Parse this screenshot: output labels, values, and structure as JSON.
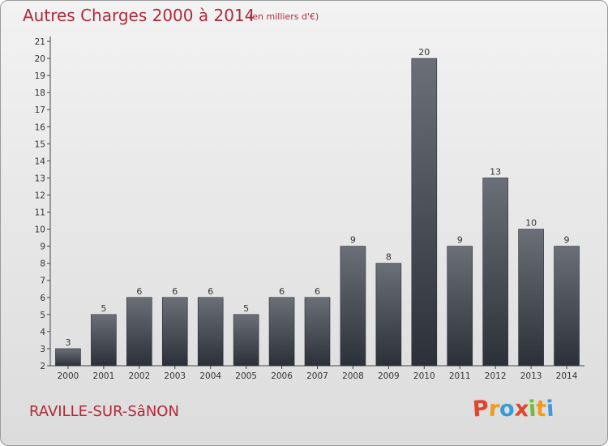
{
  "header": {
    "title": "Autres Charges 2000 à 2014",
    "subtitle": "(en milliers d'€)"
  },
  "footer": {
    "commune": "RAVILLE-SUR-SâNON",
    "logo_letters": [
      "P",
      "r",
      "o",
      "x",
      "i",
      "t",
      "i"
    ]
  },
  "colors": {
    "title": "#b02a39",
    "bar_top": "#6b7078",
    "bar_bottom": "#2c3038",
    "logo": [
      "#e2452f",
      "#f29a1e",
      "#3a9ad9",
      "#e2452f",
      "#6bbf3a",
      "#f29a1e",
      "#3a9ad9"
    ]
  },
  "chart_data": {
    "type": "bar",
    "title": "Autres Charges 2000 à 2014",
    "subtitle": "(en milliers d'€)",
    "categories": [
      "2000",
      "2001",
      "2002",
      "2003",
      "2004",
      "2005",
      "2006",
      "2007",
      "2008",
      "2009",
      "2010",
      "2011",
      "2012",
      "2013",
      "2014"
    ],
    "values": [
      3,
      5,
      6,
      6,
      6,
      5,
      6,
      6,
      9,
      8,
      20,
      9,
      13,
      10,
      9
    ],
    "data_labels": [
      "3",
      "5",
      "6",
      "6",
      "6",
      "5",
      "6",
      "6",
      "9",
      "8",
      "20",
      "9",
      "13",
      "10",
      "9"
    ],
    "ylim": [
      2,
      21
    ],
    "yticks": [
      "2",
      "3",
      "4",
      "5",
      "6",
      "7",
      "8",
      "9",
      "10",
      "11",
      "12",
      "13",
      "14",
      "15",
      "16",
      "17",
      "18",
      "19",
      "20",
      "21"
    ],
    "xlabel": "",
    "ylabel": "",
    "grid": false,
    "legend": "none"
  }
}
